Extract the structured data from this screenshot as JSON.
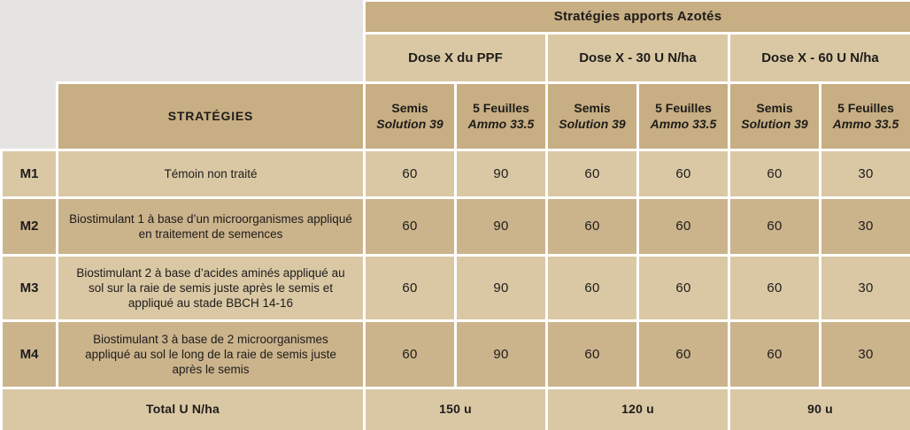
{
  "chart_data": {
    "type": "table",
    "title": "Stratégies apports Azotés",
    "strategies_header": "STRATÉGIES",
    "col_groups": [
      "Dose X du PPF",
      "Dose X - 30 U N/ha",
      "Dose X - 60 U N/ha"
    ],
    "sub_headers": {
      "semis_stage": "Semis",
      "semis_product": "Solution 39",
      "feuilles_stage": "5 Feuilles",
      "feuilles_product": "Ammo 33.5"
    },
    "rows": [
      {
        "code": "M1",
        "description": "Témoin non traité",
        "values": [
          "60",
          "90",
          "60",
          "60",
          "60",
          "30"
        ]
      },
      {
        "code": "M2",
        "description": "Biostimulant 1 à base d’un microorganismes appliqué en traitement de semences",
        "values": [
          "60",
          "90",
          "60",
          "60",
          "60",
          "30"
        ]
      },
      {
        "code": "M3",
        "description": "Biostimulant 2 à base d’acides aminés appliqué au sol sur la raie de semis juste après le semis et appliqué au stade BBCH 14-16",
        "values": [
          "60",
          "90",
          "60",
          "60",
          "60",
          "30"
        ]
      },
      {
        "code": "M4",
        "description": "Biostimulant 3 à base de 2 microorganismes appliqué au sol le long de la raie de semis juste après le semis",
        "values": [
          "60",
          "90",
          "60",
          "60",
          "60",
          "30"
        ]
      }
    ],
    "total": {
      "label": "Total U N/ha",
      "values": [
        "150 u",
        "120 u",
        "90 u"
      ]
    },
    "colors": {
      "header_tan": "#c7ae83",
      "light_row_tan": "#dac8a5",
      "medium_row_tan": "#cbb38c",
      "corner_gray": "#e6e4e2",
      "gutter": "#ffffff",
      "text": "#1e1c19"
    }
  }
}
